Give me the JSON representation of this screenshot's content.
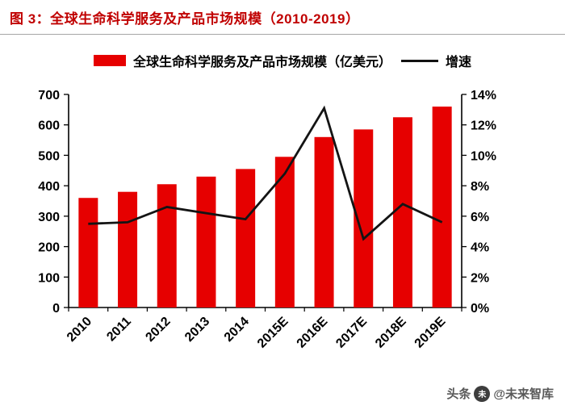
{
  "header": {
    "title": "图 3：全球生命科学服务及产品市场规模（2010-2019）"
  },
  "legend": {
    "bars_label": "全球生命科学服务及产品市场规模（亿美元）",
    "line_label": "增速"
  },
  "watermark": {
    "prefix": "头条",
    "handle": "@未来智库",
    "avatar_glyph": "未"
  },
  "colors": {
    "bar": "#e60000",
    "line": "#141414",
    "title": "#c00000",
    "axis": "#000000"
  },
  "chart_data": {
    "type": "bar",
    "title": "全球生命科学服务及产品市场规模（2010-2019）",
    "categories": [
      "2010",
      "2011",
      "2012",
      "2013",
      "2014",
      "2015E",
      "2016E",
      "2017E",
      "2018E",
      "2019E"
    ],
    "series": [
      {
        "name": "全球生命科学服务及产品市场规模（亿美元）",
        "type": "bar",
        "axis": "left",
        "values": [
          360,
          380,
          405,
          430,
          455,
          495,
          560,
          585,
          625,
          660
        ]
      },
      {
        "name": "增速",
        "type": "line",
        "axis": "right",
        "values": [
          5.5,
          5.6,
          6.6,
          6.2,
          5.8,
          8.8,
          13.1,
          4.5,
          6.8,
          5.6
        ]
      }
    ],
    "left_axis": {
      "min": 0,
      "max": 700,
      "step": 100
    },
    "right_axis": {
      "min": 0,
      "max": 14,
      "step": 2,
      "suffix": "%"
    },
    "grid": false,
    "legend_position": "top",
    "xlabel": "",
    "ylabel_left": "",
    "ylabel_right": ""
  }
}
